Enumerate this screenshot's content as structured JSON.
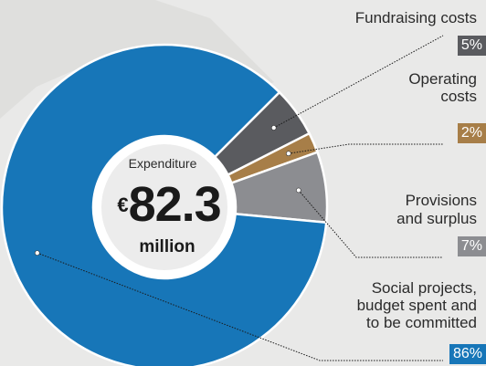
{
  "chart_data": {
    "type": "pie",
    "variant": "donut",
    "center": {
      "title": "Expenditure",
      "currency": "€",
      "value": "82.3",
      "unit": "million"
    },
    "slices": [
      {
        "label": "Social projects, budget spent and to be committed",
        "value": 86,
        "pct_label": "86%",
        "color": "#1776b8"
      },
      {
        "label": "Fundraising costs",
        "value": 5,
        "pct_label": "5%",
        "color": "#5a5b5f"
      },
      {
        "label": "Operating costs",
        "value": 2,
        "pct_label": "2%",
        "color": "#a77e48"
      },
      {
        "label": "Provisions and surplus",
        "value": 7,
        "pct_label": "7%",
        "color": "#8c8d91"
      }
    ],
    "labels": {
      "fundraising": {
        "text": "Fundraising costs",
        "pct": "5%"
      },
      "operating": {
        "line1": "Operating",
        "line2": "costs",
        "pct": "2%"
      },
      "provisions": {
        "line1": "Provisions",
        "line2": "and surplus",
        "pct": "7%"
      },
      "social": {
        "line1": "Social projects,",
        "line2": "budget spent and",
        "line3": "to be committed",
        "pct": "86%"
      }
    }
  }
}
